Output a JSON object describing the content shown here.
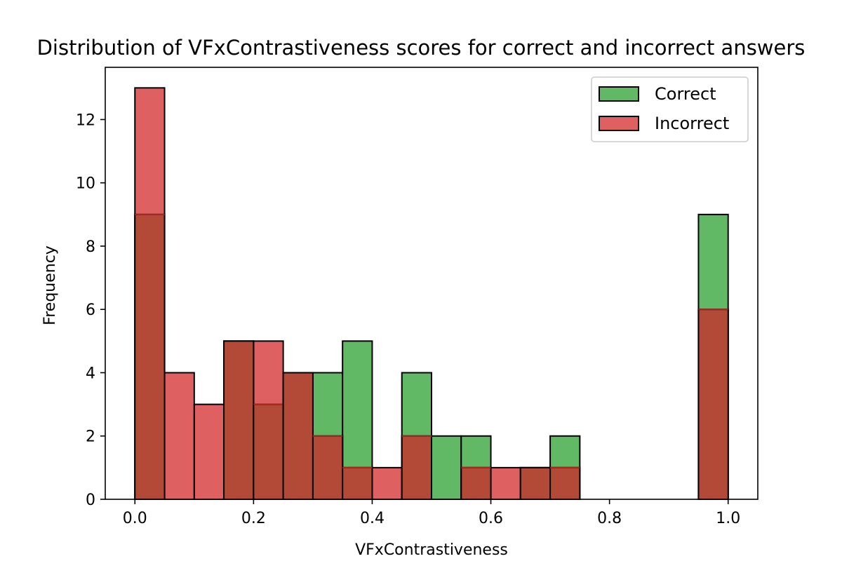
{
  "chart_data": {
    "type": "histogram",
    "title": "Distribution of VFxContrastiveness scores for correct and incorrect answers",
    "xlabel": "VFxContrastiveness",
    "ylabel": "Frequency",
    "xlim": [
      -0.05,
      1.05
    ],
    "ylim": [
      0,
      13.65
    ],
    "xticks": [
      "0.0",
      "0.2",
      "0.4",
      "0.6",
      "0.8",
      "1.0"
    ],
    "yticks": [
      "0",
      "2",
      "4",
      "6",
      "8",
      "10",
      "12"
    ],
    "grid": false,
    "legend_position": "top-right",
    "bin_edges": [
      0.0,
      0.05,
      0.1,
      0.15,
      0.2,
      0.25,
      0.3,
      0.35,
      0.4,
      0.45,
      0.5,
      0.55,
      0.6,
      0.65,
      0.7,
      0.75,
      0.8,
      0.85,
      0.9,
      0.95,
      1.0
    ],
    "series": [
      {
        "name": "Correct",
        "color": "#4CAF50",
        "values": [
          9,
          0,
          0,
          5,
          3,
          4,
          4,
          5,
          0,
          4,
          2,
          2,
          0,
          1,
          2,
          0,
          0,
          0,
          0,
          9
        ]
      },
      {
        "name": "Incorrect",
        "color": "#D94A4A",
        "values": [
          13,
          4,
          3,
          5,
          5,
          4,
          2,
          1,
          1,
          2,
          0,
          1,
          1,
          1,
          1,
          0,
          0,
          0,
          0,
          6
        ]
      }
    ],
    "overlap_color": "#B34A38"
  }
}
